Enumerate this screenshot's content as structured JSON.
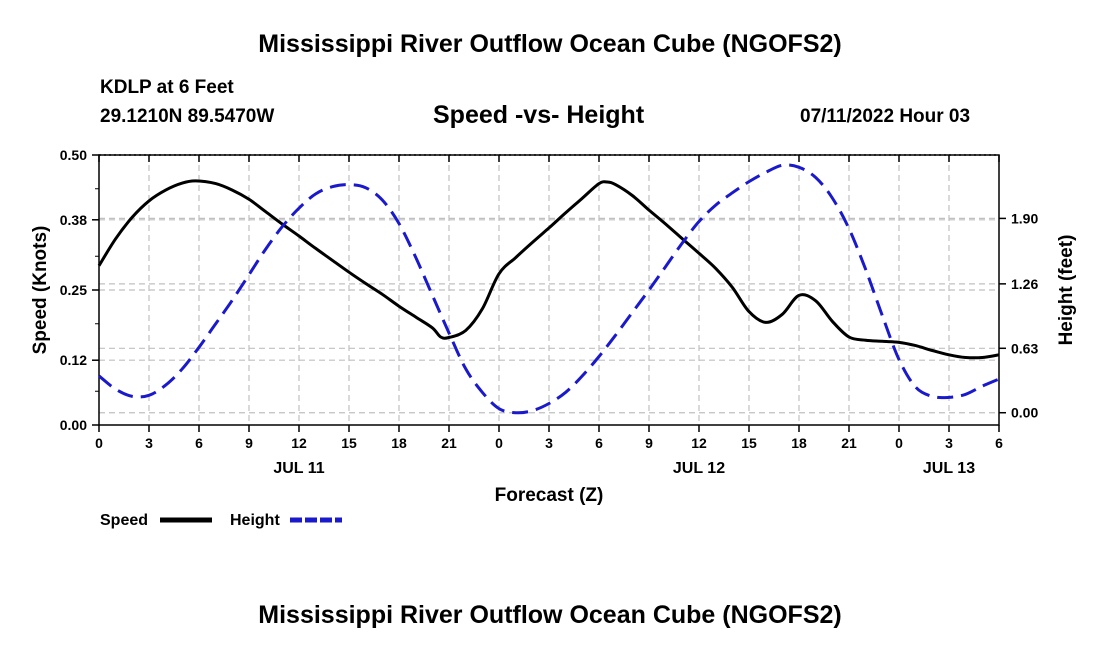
{
  "header": {
    "title": "Mississippi River Outflow Ocean Cube (NGOFS2)",
    "station": "KDLP at 6 Feet",
    "location": "29.1210N  89.5470W",
    "subtitle": "Speed -vs- Height",
    "datetime": "07/11/2022 Hour 03"
  },
  "footer": {
    "title": "Mississippi River Outflow Ocean Cube (NGOFS2)"
  },
  "legend": {
    "speed_label": "Speed",
    "height_label": "Height"
  },
  "colors": {
    "speed": "#000000",
    "height": "#1a1acc",
    "grid": "#c0c0c0"
  },
  "chart_data": {
    "type": "line",
    "xlabel": "Forecast (Z)",
    "ylabel": "Speed (Knots)",
    "y2label": "Height (feet)",
    "xlim": [
      0,
      54
    ],
    "ylim": [
      0,
      0.5
    ],
    "y2lim": [
      -0.12,
      2.52
    ],
    "x_ticks": [
      0,
      3,
      6,
      9,
      12,
      15,
      18,
      21,
      24,
      27,
      30,
      33,
      36,
      39,
      42,
      45,
      48,
      51,
      54
    ],
    "x_tick_labels": [
      "0",
      "3",
      "6",
      "9",
      "12",
      "15",
      "18",
      "21",
      "0",
      "3",
      "6",
      "9",
      "12",
      "15",
      "18",
      "21",
      "0",
      "3",
      "6"
    ],
    "date_labels": [
      {
        "x": 12,
        "label": "JUL 11"
      },
      {
        "x": 36,
        "label": "JUL 12"
      },
      {
        "x": 51,
        "label": "JUL 13"
      }
    ],
    "y_ticks": [
      0.0,
      0.12,
      0.25,
      0.38,
      0.5
    ],
    "y_tick_labels": [
      "0.00",
      "0.12",
      "0.25",
      "0.38",
      "0.50"
    ],
    "y2_ticks": [
      0.0,
      0.63,
      1.26,
      1.9
    ],
    "y2_tick_labels": [
      "0.00",
      "0.63",
      "1.26",
      "1.90"
    ],
    "series": [
      {
        "name": "Speed",
        "axis": "left",
        "dash": "solid",
        "x": [
          0,
          1,
          2,
          3,
          4,
          5,
          5.8,
          7,
          8,
          9,
          10,
          11,
          12,
          13,
          14,
          15,
          16,
          17,
          18,
          19,
          20,
          20.5,
          21,
          22,
          23,
          24,
          25,
          26,
          27,
          28,
          29,
          30,
          30.5,
          31,
          32,
          33,
          34,
          35,
          36,
          37,
          38,
          39,
          40,
          41,
          42,
          43,
          44,
          45,
          46,
          47,
          48,
          49,
          50,
          51,
          52,
          53,
          54
        ],
        "y": [
          0.295,
          0.345,
          0.385,
          0.415,
          0.435,
          0.448,
          0.452,
          0.447,
          0.435,
          0.418,
          0.395,
          0.372,
          0.35,
          0.327,
          0.305,
          0.283,
          0.262,
          0.242,
          0.22,
          0.2,
          0.18,
          0.163,
          0.162,
          0.175,
          0.215,
          0.28,
          0.31,
          0.338,
          0.365,
          0.393,
          0.42,
          0.447,
          0.45,
          0.445,
          0.425,
          0.398,
          0.372,
          0.345,
          0.318,
          0.29,
          0.255,
          0.21,
          0.19,
          0.205,
          0.24,
          0.23,
          0.192,
          0.163,
          0.157,
          0.155,
          0.153,
          0.147,
          0.138,
          0.13,
          0.125,
          0.125,
          0.13
        ]
      },
      {
        "name": "Height",
        "axis": "right",
        "dash": "dashed",
        "x": [
          0,
          1,
          2,
          3,
          4,
          5,
          6,
          7,
          8,
          9,
          10,
          11,
          12,
          13,
          14,
          15,
          16,
          17,
          18,
          19,
          20,
          21,
          22,
          23,
          24,
          25,
          26,
          27,
          28,
          29,
          30,
          31,
          32,
          33,
          34,
          35,
          36,
          37,
          38,
          39,
          40,
          41,
          42,
          43,
          44,
          45,
          46,
          47,
          48,
          49,
          50,
          51,
          52,
          53,
          54
        ],
        "y": [
          0.36,
          0.23,
          0.16,
          0.17,
          0.27,
          0.43,
          0.64,
          0.87,
          1.1,
          1.35,
          1.6,
          1.82,
          2.0,
          2.14,
          2.21,
          2.23,
          2.2,
          2.08,
          1.85,
          1.52,
          1.15,
          0.78,
          0.43,
          0.2,
          0.04,
          0.0,
          0.02,
          0.09,
          0.2,
          0.36,
          0.55,
          0.76,
          0.98,
          1.2,
          1.43,
          1.66,
          1.87,
          2.03,
          2.15,
          2.26,
          2.35,
          2.42,
          2.4,
          2.3,
          2.1,
          1.8,
          1.4,
          0.95,
          0.52,
          0.25,
          0.16,
          0.15,
          0.18,
          0.26,
          0.33
        ]
      }
    ]
  }
}
